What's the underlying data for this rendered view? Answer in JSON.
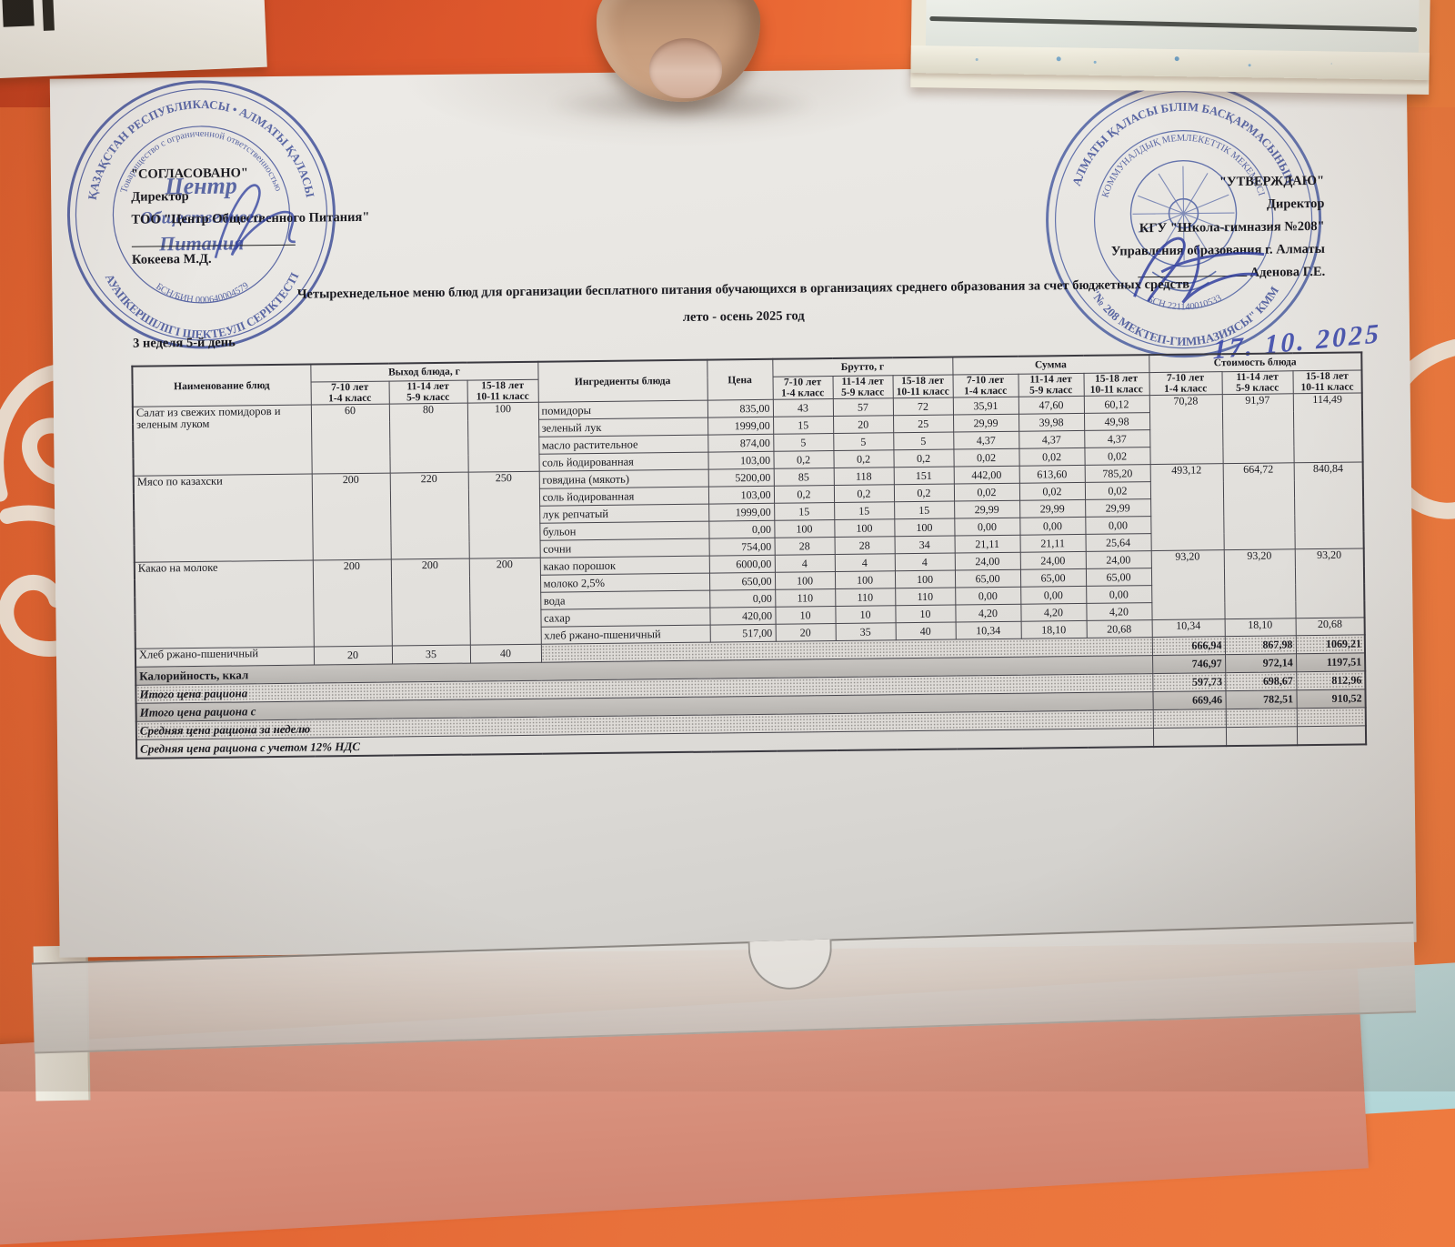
{
  "scene": {
    "wall_color": "#e8713b",
    "stamp_color": "#4053a8",
    "ink_color": "#3c49ab"
  },
  "approved_left": {
    "title": "\"СОГЛАСОВАНО\"",
    "role": "Директор",
    "org": "ТОО \"Центр Общественного Питания\"",
    "name": "Кокеева М.Д."
  },
  "approved_right": {
    "title": "\"УТВЕРЖДАЮ\"",
    "role": "Директор",
    "org": "КГУ  \"Школа-гимназия №208\"",
    "org2": "Управления образования г. Алматы",
    "name": "Аденова Г.Е."
  },
  "title_line1": "Четырехнедельное меню блюд для организации бесплатного питания обучающихся в организациях среднего образования за счет бюджетных средств",
  "title_line2": "лето - осень 2025 год",
  "week_label": "3 неделя 5-й день",
  "handwritten_date": "17. 10. 2025",
  "stamp_left": {
    "ring_top": "ҚАЗАҚСТАН РЕСПУБЛИКАСЫ • АЛМАТЫ ҚАЛАСЫ",
    "ring_bottom": "ЖАУАПКЕРШІЛІГІ ШЕКТЕУЛІ СЕРІКТЕСТІГІ",
    "ring_inner_top": "Товарищество с ограниченной ответственностью",
    "ring_inner_bottom": "БСН/БИН 000640004579",
    "center_lines": [
      "Центр",
      "Общественного",
      "Питания"
    ]
  },
  "stamp_right": {
    "ring_top": "АЛМАТЫ ҚАЛАСЫ БІЛІМ БАСҚАРМАСЫНЫҢ",
    "ring_bottom": "\"№ 208 МЕКТЕП-ГИМНАЗИЯСЫ\" КММ",
    "ring_inner_top": "КОММУНАЛДЫҚ МЕМЛЕКЕТТІК МЕКЕМЕСІ",
    "ring_inner_bottom": "БСН 221140010533"
  },
  "table": {
    "headers": {
      "dish": "Наименование блюд",
      "yield_group": "Выход блюда, г",
      "ingredients": "Ингредиенты блюда",
      "price": "Цена",
      "brutto_group": "Брутто, г",
      "sum_group": "Сумма",
      "cost_group": "Стоимость блюда",
      "age_cols": [
        "7-10 лет\n1-4 класс",
        "11-14 лет\n5-9 класс",
        "15-18 лет\n10-11 класс"
      ]
    },
    "groups": [
      {
        "dish": "Салат из свежих помидоров и зеленым луком",
        "yield": [
          "60",
          "80",
          "100"
        ],
        "cost": [
          "70,28",
          "91,97",
          "114,49"
        ],
        "ingredients": [
          {
            "name": "помидоры",
            "price": "835,00",
            "brutto": [
              "43",
              "57",
              "72"
            ],
            "sum": [
              "35,91",
              "47,60",
              "60,12"
            ]
          },
          {
            "name": "зеленый лук",
            "price": "1999,00",
            "brutto": [
              "15",
              "20",
              "25"
            ],
            "sum": [
              "29,99",
              "39,98",
              "49,98"
            ]
          },
          {
            "name": "масло растительное",
            "price": "874,00",
            "brutto": [
              "5",
              "5",
              "5"
            ],
            "sum": [
              "4,37",
              "4,37",
              "4,37"
            ]
          },
          {
            "name": "соль йодированная",
            "price": "103,00",
            "brutto": [
              "0,2",
              "0,2",
              "0,2"
            ],
            "sum": [
              "0,02",
              "0,02",
              "0,02"
            ]
          }
        ]
      },
      {
        "dish": "Мясо по казахски",
        "yield": [
          "200",
          "220",
          "250"
        ],
        "cost": [
          "493,12",
          "664,72",
          "840,84"
        ],
        "ingredients": [
          {
            "name": "говядина (мякоть)",
            "price": "5200,00",
            "brutto": [
              "85",
              "118",
              "151"
            ],
            "sum": [
              "442,00",
              "613,60",
              "785,20"
            ]
          },
          {
            "name": "соль йодированная",
            "price": "103,00",
            "brutto": [
              "0,2",
              "0,2",
              "0,2"
            ],
            "sum": [
              "0,02",
              "0,02",
              "0,02"
            ]
          },
          {
            "name": "лук репчатый",
            "price": "1999,00",
            "brutto": [
              "15",
              "15",
              "15"
            ],
            "sum": [
              "29,99",
              "29,99",
              "29,99"
            ]
          },
          {
            "name": "бульон",
            "price": "0,00",
            "brutto": [
              "100",
              "100",
              "100"
            ],
            "sum": [
              "0,00",
              "0,00",
              "0,00"
            ]
          },
          {
            "name": "сочни",
            "price": "754,00",
            "brutto": [
              "28",
              "28",
              "34"
            ],
            "sum": [
              "21,11",
              "21,11",
              "25,64"
            ]
          }
        ]
      },
      {
        "dish": "Какао на молоке",
        "yield": [
          "200",
          "200",
          "200"
        ],
        "cost": [
          "93,20",
          "93,20",
          "93,20"
        ],
        "cost_rowspan": 4,
        "ingredients": [
          {
            "name": "какао порошок",
            "price": "6000,00",
            "brutto": [
              "4",
              "4",
              "4"
            ],
            "sum": [
              "24,00",
              "24,00",
              "24,00"
            ]
          },
          {
            "name": "молоко 2,5%",
            "price": "650,00",
            "brutto": [
              "100",
              "100",
              "100"
            ],
            "sum": [
              "65,00",
              "65,00",
              "65,00"
            ]
          },
          {
            "name": "вода",
            "price": "0,00",
            "brutto": [
              "110",
              "110",
              "110"
            ],
            "sum": [
              "0,00",
              "0,00",
              "0,00"
            ]
          },
          {
            "name": "сахар",
            "price": "420,00",
            "brutto": [
              "10",
              "10",
              "10"
            ],
            "sum": [
              "4,20",
              "4,20",
              "4,20"
            ]
          },
          {
            "name": "хлеб ржано-пшеничный",
            "price": "517,00",
            "brutto": [
              "20",
              "35",
              "40"
            ],
            "sum": [
              "10,34",
              "18,10",
              "20,68"
            ],
            "cost": [
              "10,34",
              "18,10",
              "20,68"
            ]
          }
        ]
      }
    ],
    "summary": [
      {
        "type": "dish_row",
        "label": "Хлеб ржано-пшеничный",
        "yield": [
          "20",
          "35",
          "40"
        ],
        "values": [
          "666,94",
          "867,98",
          "1069,21"
        ],
        "fill": "dots",
        "italic": false
      },
      {
        "type": "full",
        "label": "Калорийность, ккал",
        "values": [
          "746,97",
          "972,14",
          "1197,51"
        ],
        "fill": "solid",
        "italic": false
      },
      {
        "type": "full",
        "label": "Итого цена рациона",
        "values": [
          "597,73",
          "698,67",
          "812,96"
        ],
        "fill": "dots",
        "italic": true
      },
      {
        "type": "full",
        "label": "Итого цена рациона с",
        "values": [
          "669,46",
          "782,51",
          "910,52"
        ],
        "fill": "solid",
        "italic": true
      },
      {
        "type": "full",
        "label": "Средняя цена рациона за неделю",
        "values": [
          "",
          "",
          ""
        ],
        "fill": "dots",
        "italic": true
      },
      {
        "type": "full",
        "label": "Средняя цена рациона с учетом 12% НДС",
        "values": [
          "",
          "",
          ""
        ],
        "fill": "none",
        "italic": true
      }
    ]
  }
}
